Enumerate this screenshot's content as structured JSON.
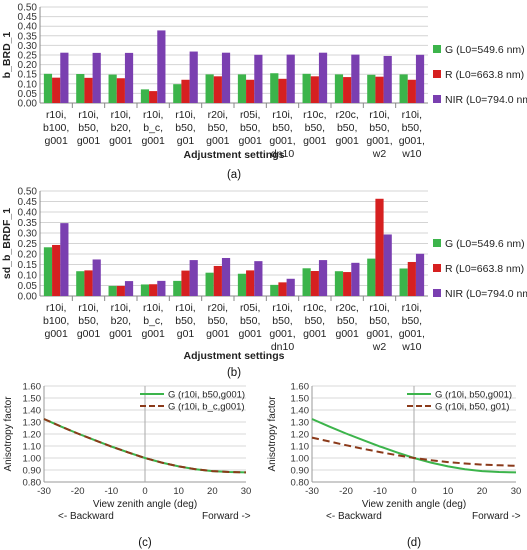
{
  "panels": {
    "a": "(a)",
    "b": "(b)",
    "c": "(c)",
    "d": "(d)"
  },
  "chart_data": [
    {
      "id": "a",
      "type": "bar",
      "title": "",
      "ylabel": "b_BRD_1",
      "xlabel": "Adjustment settings",
      "ylim": [
        0,
        0.5
      ],
      "yticks": [
        "0.00",
        "0.05",
        "0.10",
        "0.15",
        "0.20",
        "0.25",
        "0.30",
        "0.35",
        "0.40",
        "0.45",
        "0.50"
      ],
      "grid": true,
      "legend": "right",
      "categories": [
        [
          "r10i,",
          "b100,",
          "g001"
        ],
        [
          "r10i,",
          "b50,",
          "g001"
        ],
        [
          "r10i,",
          "b20,",
          "g001"
        ],
        [
          "r10i,",
          "b_c,",
          "g001"
        ],
        [
          "r10i,",
          "b50,",
          "g01"
        ],
        [
          "r20i,",
          "b50,",
          "g001"
        ],
        [
          "r05i,",
          "b50,",
          "g001"
        ],
        [
          "r10i,",
          "b50,",
          "g001,",
          "dn10"
        ],
        [
          "r10c,",
          "b50,",
          "g001"
        ],
        [
          "r20c,",
          "b50,",
          "g001"
        ],
        [
          "r10i,",
          "b50,",
          "g001,",
          "w2"
        ],
        [
          "r10i,",
          "b50,",
          "g001,",
          "w10"
        ]
      ],
      "series": [
        {
          "name": "G (L0=549.6 nm)",
          "color": "#3cb44b",
          "values": [
            0.152,
            0.151,
            0.148,
            0.071,
            0.098,
            0.149,
            0.149,
            0.155,
            0.152,
            0.149,
            0.147,
            0.149
          ]
        },
        {
          "name": "R (L0=663.8 nm)",
          "color": "#d62020",
          "values": [
            0.132,
            0.131,
            0.129,
            0.062,
            0.121,
            0.139,
            0.121,
            0.126,
            0.139,
            0.135,
            0.137,
            0.121
          ]
        },
        {
          "name": "NIR (L0=794.0 nm)",
          "color": "#7a3fb0",
          "values": [
            0.262,
            0.261,
            0.261,
            0.378,
            0.268,
            0.262,
            0.251,
            0.252,
            0.262,
            0.252,
            0.245,
            0.251
          ]
        }
      ]
    },
    {
      "id": "b",
      "type": "bar",
      "title": "",
      "ylabel": "sd_b_BRDF_1",
      "xlabel": "Adjustment settings",
      "ylim": [
        0,
        0.5
      ],
      "yticks": [
        "0.00",
        "0.05",
        "0.10",
        "0.15",
        "0.20",
        "0.25",
        "0.30",
        "0.35",
        "0.40",
        "0.45",
        "0.50"
      ],
      "grid": true,
      "legend": "right",
      "categories": [
        [
          "r10i,",
          "b100,",
          "g001"
        ],
        [
          "r10i,",
          "b50,",
          "g001"
        ],
        [
          "r10i,",
          "b20,",
          "g001"
        ],
        [
          "r10i,",
          "b_c,",
          "g001"
        ],
        [
          "r10i,",
          "b50,",
          "g01"
        ],
        [
          "r20i,",
          "b50,",
          "g001"
        ],
        [
          "r05i,",
          "b50,",
          "g001"
        ],
        [
          "r10i,",
          "b50,",
          "g001,",
          "dn10"
        ],
        [
          "r10c,",
          "b50,",
          "g001"
        ],
        [
          "r20c,",
          "b50,",
          "g001"
        ],
        [
          "r10i,",
          "b50,",
          "g001,",
          "w2"
        ],
        [
          "r10i,",
          "b50,",
          "g001,",
          "w10"
        ]
      ],
      "series": [
        {
          "name": "G (L0=549.6 nm)",
          "color": "#3cb44b",
          "values": [
            0.232,
            0.118,
            0.048,
            0.055,
            0.072,
            0.111,
            0.106,
            0.053,
            0.132,
            0.118,
            0.178,
            0.131
          ]
        },
        {
          "name": "R (L0=663.8 nm)",
          "color": "#d62020",
          "values": [
            0.243,
            0.122,
            0.048,
            0.056,
            0.121,
            0.143,
            0.122,
            0.065,
            0.119,
            0.114,
            0.463,
            0.162
          ]
        },
        {
          "name": "NIR (L0=794.0 nm)",
          "color": "#7a3fb0",
          "values": [
            0.347,
            0.174,
            0.071,
            0.072,
            0.171,
            0.181,
            0.166,
            0.082,
            0.171,
            0.158,
            0.293,
            0.201
          ]
        }
      ]
    },
    {
      "id": "c",
      "type": "line",
      "title": "",
      "ylabel": "Anisotropy factor",
      "xlabel": "View zenith angle (deg)",
      "xsub_left": "<- Backward",
      "xsub_right": "Forward ->",
      "xlim": [
        -30,
        30
      ],
      "ylim": [
        0.8,
        1.6
      ],
      "xticks": [
        "-30",
        "-20",
        "-10",
        "0",
        "10",
        "20",
        "30"
      ],
      "yticks": [
        "0.80",
        "0.90",
        "1.00",
        "1.10",
        "1.20",
        "1.30",
        "1.40",
        "1.50",
        "1.60"
      ],
      "legend": "top-right",
      "x": [
        -30,
        -25,
        -20,
        -15,
        -10,
        -5,
        0,
        5,
        10,
        15,
        20,
        25,
        30
      ],
      "series": [
        {
          "name": "G (r10i, b50,g001)",
          "color": "#3cb44b",
          "dash": "solid",
          "values": [
            1.325,
            1.263,
            1.204,
            1.149,
            1.096,
            1.047,
            1.0,
            0.962,
            0.93,
            0.907,
            0.891,
            0.883,
            0.88
          ]
        },
        {
          "name": "G (r10i, b_c,g001)",
          "color": "#8b3a1a",
          "dash": "dashed",
          "values": [
            1.325,
            1.263,
            1.204,
            1.149,
            1.096,
            1.047,
            1.0,
            0.962,
            0.93,
            0.907,
            0.891,
            0.883,
            0.88
          ]
        }
      ]
    },
    {
      "id": "d",
      "type": "line",
      "title": "",
      "ylabel": "Anisotropy factor",
      "xlabel": "View zenith angle (deg)",
      "xsub_left": "<- Backward",
      "xsub_right": "Forward ->",
      "xlim": [
        -30,
        30
      ],
      "ylim": [
        0.8,
        1.6
      ],
      "xticks": [
        "-30",
        "-20",
        "-10",
        "0",
        "10",
        "20",
        "30"
      ],
      "yticks": [
        "0.80",
        "0.90",
        "1.00",
        "1.10",
        "1.20",
        "1.30",
        "1.40",
        "1.50",
        "1.60"
      ],
      "legend": "top-right",
      "x": [
        -30,
        -25,
        -20,
        -15,
        -10,
        -5,
        0,
        5,
        10,
        15,
        20,
        25,
        30
      ],
      "series": [
        {
          "name": "G (r10i, b50,g001)",
          "color": "#3cb44b",
          "dash": "solid",
          "values": [
            1.325,
            1.263,
            1.204,
            1.149,
            1.096,
            1.047,
            1.0,
            0.962,
            0.93,
            0.907,
            0.891,
            0.883,
            0.88
          ]
        },
        {
          "name": "G (r10i, b50, g01)",
          "color": "#8b3a1a",
          "dash": "dashed",
          "values": [
            1.17,
            1.138,
            1.107,
            1.077,
            1.049,
            1.023,
            1.0,
            0.982,
            0.966,
            0.954,
            0.945,
            0.939,
            0.935
          ]
        }
      ]
    }
  ]
}
